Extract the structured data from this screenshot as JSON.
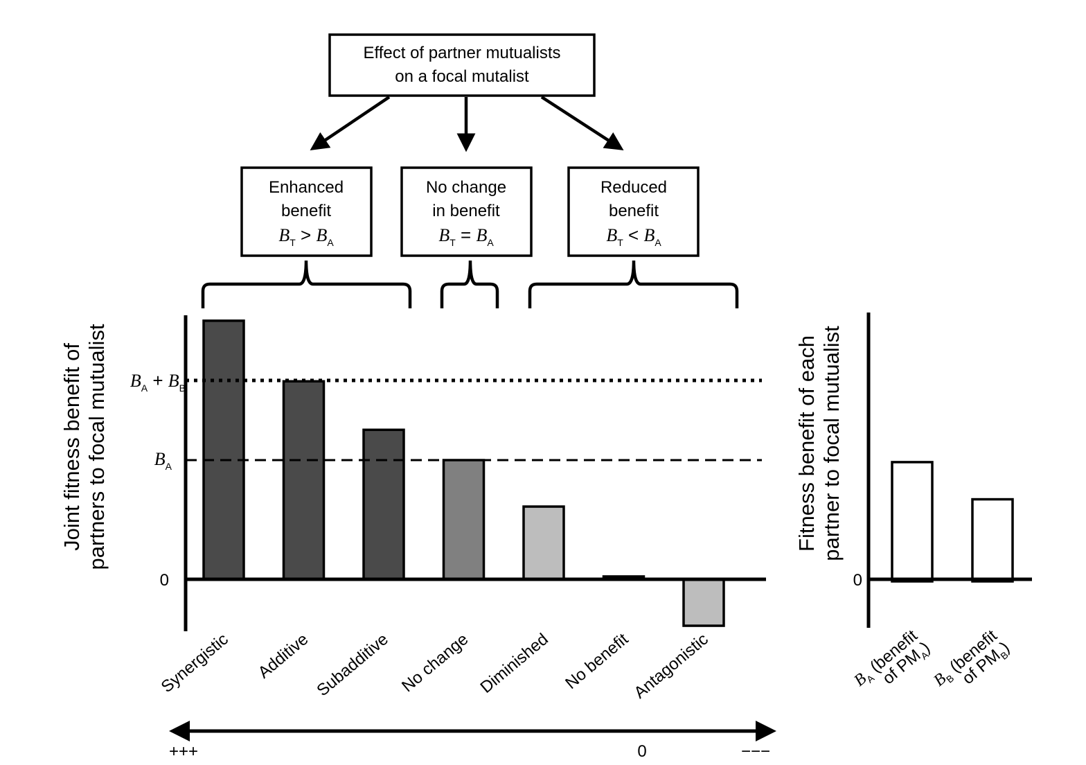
{
  "diagram": {
    "top_box": {
      "line1": "Effect of partner mutualists",
      "line2": "on a focal mutalist"
    },
    "boxes": [
      {
        "line1": "Enhanced",
        "line2": "benefit",
        "formula": {
          "lhs": "B",
          "lhs_sub": "T",
          "op": ">",
          "rhs": "B",
          "rhs_sub": "A"
        }
      },
      {
        "line1": "No change",
        "line2": "in benefit",
        "formula": {
          "lhs": "B",
          "lhs_sub": "T",
          "op": "=",
          "rhs": "B",
          "rhs_sub": "A"
        }
      },
      {
        "line1": "Reduced",
        "line2": "benefit",
        "formula": {
          "lhs": "B",
          "lhs_sub": "T",
          "op": "<",
          "rhs": "B",
          "rhs_sub": "A"
        }
      }
    ]
  },
  "main_chart": {
    "ylabel_line1": "Joint fitness benefit of",
    "ylabel_line2": "partners to focal mutualist",
    "zero_label": "0",
    "ref_lines": [
      {
        "label_main": "B",
        "label_sub": "A",
        "label_plus": "+",
        "label_main2": "B",
        "label_sub2": "B",
        "style": "dotted"
      },
      {
        "label_main": "B",
        "label_sub": "A",
        "style": "dashed"
      }
    ]
  },
  "side_chart": {
    "ylabel_line1": "Fitness benefit of each",
    "ylabel_line2": "partner to focal mutualist",
    "zero_label": "0",
    "labels": [
      {
        "main": "B",
        "sub": "A",
        "rest1": " (benefit",
        "rest2": "of PM",
        "rest_sub": "A",
        "close": ")"
      },
      {
        "main": "B",
        "sub": "B",
        "rest1": " (benefit",
        "rest2": "of PM",
        "rest_sub": "B",
        "close": ")"
      }
    ]
  },
  "arrow_axis": {
    "left": "+++",
    "middle": "0",
    "right": "−−−"
  },
  "colors": {
    "dark": "#4a4a4a",
    "medium": "#808080",
    "light": "#bdbdbd",
    "white": "#ffffff"
  },
  "chart_data": [
    {
      "type": "bar",
      "categories": [
        "Synergistic",
        "Additive",
        "Subadditive",
        "No change",
        "Diminished",
        "No benefit",
        "Antagonistic"
      ],
      "values": [
        6.4,
        4.9,
        3.7,
        2.95,
        1.8,
        0.07,
        -1.15
      ],
      "reference_lines": {
        "B_A": 2.95,
        "B_A_plus_B_B": 4.9
      },
      "bar_colors": [
        "dark",
        "dark",
        "dark",
        "medium",
        "light",
        "light",
        "light"
      ],
      "ylabel": "Joint fitness benefit of partners to focal mutualist"
    },
    {
      "type": "bar",
      "categories": [
        "B_A (benefit of PM_A)",
        "B_B (benefit of PM_B)"
      ],
      "values": [
        2.9,
        1.98
      ],
      "bar_colors": [
        "white",
        "white"
      ],
      "ylabel": "Fitness benefit of each partner to focal mutualist"
    }
  ]
}
